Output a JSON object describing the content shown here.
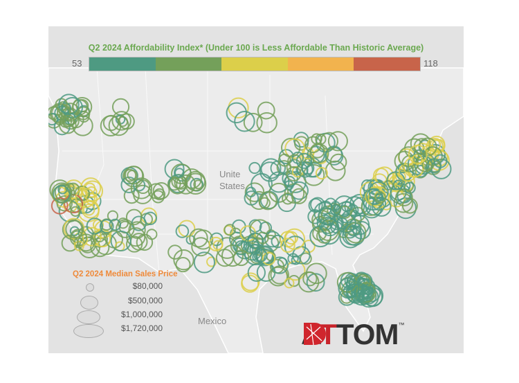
{
  "affordability_legend": {
    "title": "Q2 2024 Affordability Index* (Under 100 is Less Affordable Than Historic Average)",
    "min": "53",
    "max": "118",
    "colors": [
      "#4e9a82",
      "#74a05a",
      "#dccf4a",
      "#f2b34e",
      "#c8644a"
    ]
  },
  "map_labels": {
    "us": "United States",
    "us_line1": "Unite",
    "us_line2": "States",
    "mexico": "Mexico"
  },
  "size_legend": {
    "title": "Q2 2024 Median Sales Price",
    "items": [
      "$80,000",
      "$500,000",
      "$1,000,000",
      "$1,720,000"
    ]
  },
  "logo": {
    "text": "ATTOM",
    "tm": "™"
  }
}
